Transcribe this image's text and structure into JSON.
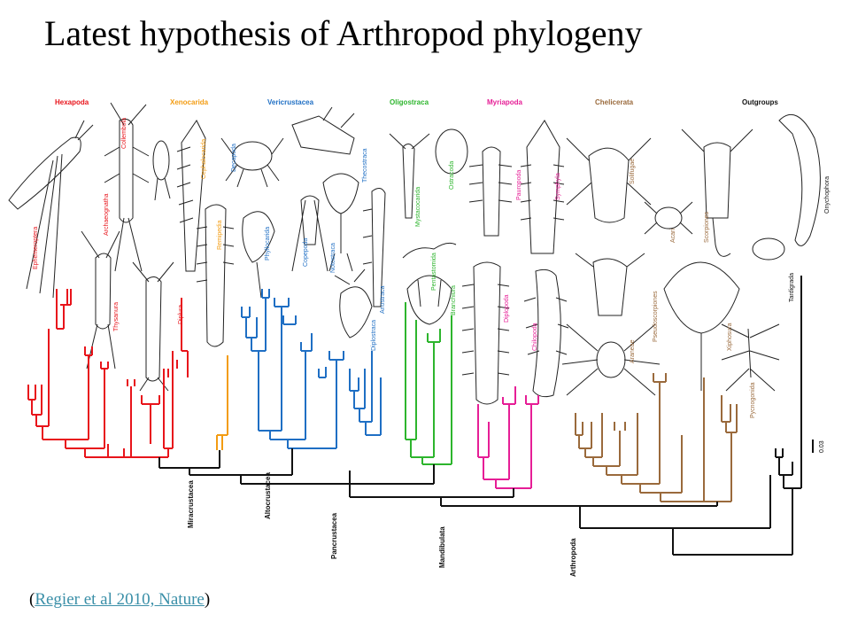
{
  "title": "Latest hypothesis of Arthropod phylogeny",
  "citation": {
    "open": "(",
    "link_text": "Regier et al 2010, Nature",
    "close": ")"
  },
  "groups": [
    {
      "name": "Hexapoda",
      "color": "#e8141b"
    },
    {
      "name": "Xenocarida",
      "color": "#f39c12"
    },
    {
      "name": "Vericrustacea",
      "color": "#1f6fc4"
    },
    {
      "name": "Oligostraca",
      "color": "#2db52d"
    },
    {
      "name": "Myriapoda",
      "color": "#e61e96"
    },
    {
      "name": "Chelicerata",
      "color": "#9a6a3c"
    },
    {
      "name": "Outgroups",
      "color": "#111111"
    }
  ],
  "taxa": [
    {
      "name": "Ephemeroptera",
      "group": 0
    },
    {
      "name": "Thysanura",
      "group": 0
    },
    {
      "name": "Archaeognatha",
      "group": 0
    },
    {
      "name": "Diplura",
      "group": 0
    },
    {
      "name": "Collembola",
      "group": 0
    },
    {
      "name": "Cephalocarida",
      "group": 1
    },
    {
      "name": "Remipedia",
      "group": 1
    },
    {
      "name": "Decapoda",
      "group": 2
    },
    {
      "name": "Phyllocarida",
      "group": 2
    },
    {
      "name": "Copepoda",
      "group": 2
    },
    {
      "name": "Notostraca",
      "group": 2
    },
    {
      "name": "Thecostraca",
      "group": 2
    },
    {
      "name": "Anostraca",
      "group": 2
    },
    {
      "name": "Diplostraca",
      "group": 2
    },
    {
      "name": "Mystacocarida",
      "group": 3
    },
    {
      "name": "Pentastomida",
      "group": 3
    },
    {
      "name": "Ostracoda",
      "group": 3
    },
    {
      "name": "Branchiura",
      "group": 3
    },
    {
      "name": "Pauropoda",
      "group": 4
    },
    {
      "name": "Symphyla",
      "group": 4
    },
    {
      "name": "Diplopoda",
      "group": 4
    },
    {
      "name": "Chilopoda",
      "group": 4
    },
    {
      "name": "Solifugae",
      "group": 5
    },
    {
      "name": "Acari",
      "group": 5
    },
    {
      "name": "Scorpiones",
      "group": 5
    },
    {
      "name": "Pseudoscorpiones",
      "group": 5
    },
    {
      "name": "Araneae",
      "group": 5
    },
    {
      "name": "Xiphosura",
      "group": 5
    },
    {
      "name": "Pycnogonida",
      "group": 5
    },
    {
      "name": "Onychophora",
      "group": 6
    },
    {
      "name": "Tardigrada",
      "group": 6
    }
  ],
  "clades": [
    "Miracrustacea",
    "Altocrustacea",
    "Pancrustacea",
    "Mandibulata",
    "Arthropoda"
  ],
  "scale_bar": "0.03"
}
